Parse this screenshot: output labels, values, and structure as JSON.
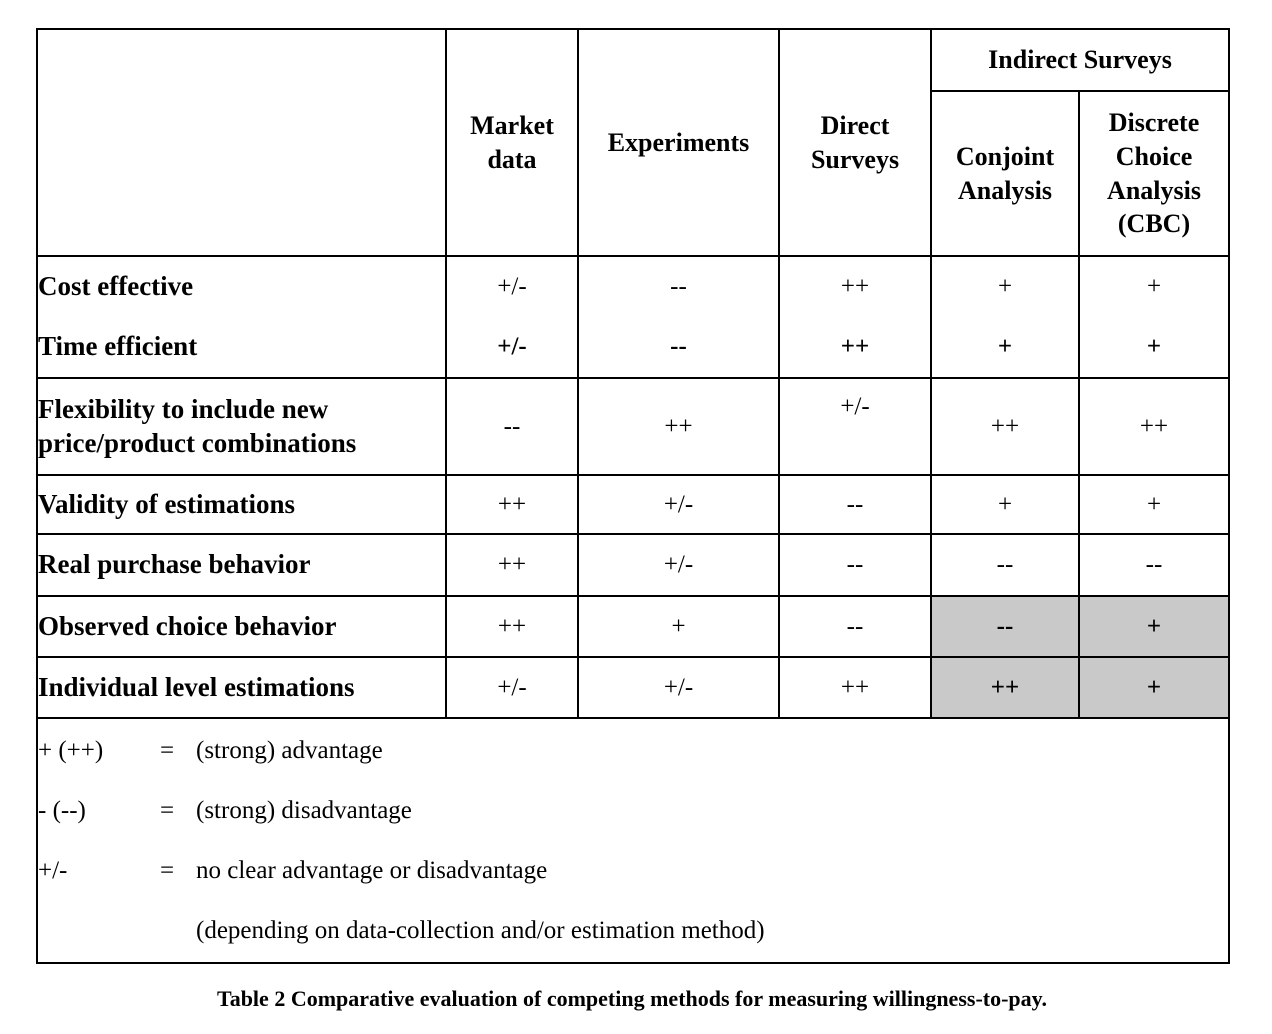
{
  "table": {
    "header": {
      "corner": "",
      "columns": [
        "Market\ndata",
        "Experiments",
        "Direct\nSurveys"
      ],
      "group": {
        "label": "Indirect Surveys",
        "columns": [
          "Conjoint\nAnalysis",
          "Discrete\nChoice\nAnalysis\n(CBC)"
        ]
      }
    },
    "rows": [
      {
        "label": "Cost effective",
        "values": [
          "+/-",
          "--",
          "++",
          "+",
          "+"
        ],
        "merge_below": true
      },
      {
        "label": "Time efficient",
        "values": [
          "+/-",
          "--",
          "++",
          "+",
          "+"
        ],
        "bold_values": true,
        "merge_above": true
      },
      {
        "label": "Flexibility to include new\nprice/product combinations",
        "values": [
          "--",
          "++",
          "+/-",
          "++",
          "++"
        ],
        "raised_cols": [
          2
        ]
      },
      {
        "label": "Validity of estimations",
        "values": [
          "++",
          "+/-",
          "--",
          "+",
          "+"
        ]
      },
      {
        "label": "Real purchase behavior",
        "values": [
          "++",
          "+/-",
          "--",
          "--",
          "--"
        ]
      },
      {
        "label": "Observed choice behavior",
        "values": [
          "++",
          "+",
          "--",
          "--",
          "+"
        ],
        "highlight_cols": [
          3,
          4
        ]
      },
      {
        "label": "Individual level estimations",
        "values": [
          "+/-",
          "+/-",
          "++",
          "++",
          "+"
        ],
        "highlight_cols": [
          3,
          4
        ]
      }
    ],
    "legend": [
      {
        "symbol": "+ (++)",
        "eq": "=",
        "text": "(strong) advantage"
      },
      {
        "symbol": "- (--)",
        "eq": "=",
        "text": "(strong) disadvantage"
      },
      {
        "symbol": "+/-",
        "eq": "=",
        "text": "no clear advantage or disadvantage"
      },
      {
        "symbol": "",
        "eq": "",
        "text": "(depending on data-collection and/or estimation method)"
      }
    ],
    "caption": "Table 2 Comparative evaluation of competing methods for measuring willingness-to-pay."
  },
  "colors": {
    "background": "#ffffff",
    "border": "#000000",
    "text": "#000000",
    "highlight": "#c9c9c9"
  }
}
